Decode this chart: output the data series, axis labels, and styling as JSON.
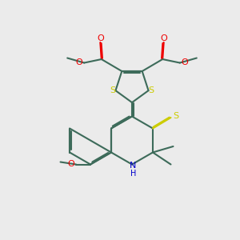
{
  "bg_color": "#ebebeb",
  "bond_color": "#3d6b5a",
  "bond_width": 1.5,
  "S_color": "#cccc00",
  "O_color": "#ee0000",
  "N_color": "#0000cc",
  "fig_width": 3.0,
  "fig_height": 3.0,
  "dpi": 100,
  "xlim": [
    0,
    10
  ],
  "ylim": [
    0,
    10
  ]
}
